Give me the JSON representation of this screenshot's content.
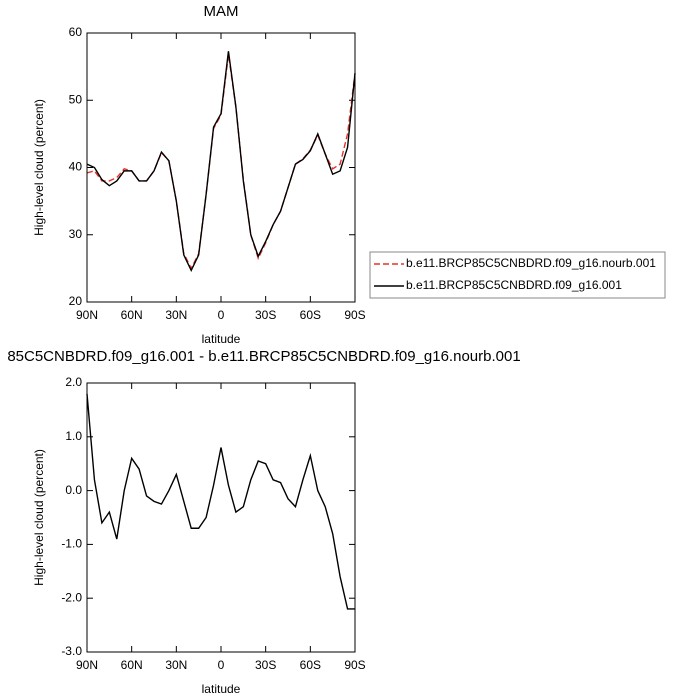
{
  "chart_data": [
    {
      "type": "line",
      "title": "MAM",
      "xlabel": "latitude",
      "ylabel": "High-level cloud (percent)",
      "x": [
        90,
        85,
        80,
        75,
        70,
        65,
        60,
        55,
        50,
        45,
        40,
        35,
        30,
        25,
        20,
        15,
        10,
        5,
        0,
        -5,
        -10,
        -15,
        -20,
        -25,
        -30,
        -35,
        -40,
        -45,
        -50,
        -55,
        -60,
        -65,
        -70,
        -75,
        -80,
        -85,
        -90
      ],
      "xlim": [
        90,
        -90
      ],
      "xticks": [
        {
          "value": 90,
          "label": "90N"
        },
        {
          "value": 60,
          "label": "60N"
        },
        {
          "value": 30,
          "label": "30N"
        },
        0,
        {
          "value": -30,
          "label": "30S"
        },
        {
          "value": -60,
          "label": "60S"
        },
        {
          "value": -90,
          "label": "90S"
        }
      ],
      "ylim": [
        20,
        60
      ],
      "yticks": [
        20,
        30,
        40,
        50,
        60
      ],
      "series": [
        {
          "name": "b.e11.BRCP85C5CNBDRD.f09_g16.nourb.001",
          "color": "#e8302a",
          "dash": true,
          "values": [
            39.2,
            39.5,
            38.0,
            38.0,
            38.5,
            39.8,
            39.5,
            38.0,
            38.0,
            39.5,
            42.2,
            41.0,
            35.0,
            27.2,
            25.0,
            27.2,
            36.0,
            45.8,
            47.8,
            56.8,
            49.0,
            38.2,
            30.0,
            26.5,
            28.8,
            31.5,
            33.5,
            37.0,
            40.5,
            41.3,
            42.6,
            44.8,
            42.0,
            39.8,
            40.5,
            45.0,
            54.0
          ]
        },
        {
          "name": "b.e11.BRCP85C5CNBDRD.f09_g16.001",
          "color": "#000000",
          "dash": false,
          "values": [
            40.5,
            40.0,
            38.2,
            37.3,
            38.0,
            39.5,
            39.5,
            38.0,
            38.0,
            39.5,
            42.3,
            41.0,
            35.0,
            27.0,
            24.7,
            27.0,
            36.0,
            46.0,
            48.0,
            57.3,
            49.0,
            38.0,
            30.0,
            26.8,
            29.0,
            31.5,
            33.5,
            37.0,
            40.5,
            41.2,
            42.5,
            45.0,
            42.0,
            39.0,
            39.5,
            43.0,
            54.0
          ]
        }
      ]
    },
    {
      "type": "line",
      "title": "85C5CNBDRD.f09_g16.001 - b.e11.BRCP85C5CNBDRD.f09_g16.nourb.001",
      "xlabel": "latitude",
      "ylabel": "High-level cloud (percent)",
      "x": [
        90,
        85,
        80,
        75,
        70,
        65,
        60,
        55,
        50,
        45,
        40,
        35,
        30,
        25,
        20,
        15,
        10,
        5,
        0,
        -5,
        -10,
        -15,
        -20,
        -25,
        -30,
        -35,
        -40,
        -45,
        -50,
        -55,
        -60,
        -65,
        -70,
        -75,
        -80,
        -85,
        -90
      ],
      "xlim": [
        90,
        -90
      ],
      "xticks": [
        {
          "value": 90,
          "label": "90N"
        },
        {
          "value": 60,
          "label": "60N"
        },
        {
          "value": 30,
          "label": "30N"
        },
        0,
        {
          "value": -30,
          "label": "30S"
        },
        {
          "value": -60,
          "label": "60S"
        },
        {
          "value": -90,
          "label": "90S"
        }
      ],
      "ylim": [
        -3,
        2
      ],
      "yticks": [
        {
          "value": -3,
          "label": "-3.0"
        },
        {
          "value": -2,
          "label": "-2.0"
        },
        {
          "value": -1,
          "label": "-1.0"
        },
        {
          "value": 0,
          "label": "0.0"
        },
        {
          "value": 1,
          "label": "1.0"
        },
        {
          "value": 2,
          "label": "2.0"
        }
      ],
      "series": [
        {
          "color": "#000000",
          "dash": false,
          "values": [
            1.8,
            0.2,
            -0.6,
            -0.4,
            -0.9,
            0.0,
            0.6,
            0.4,
            -0.1,
            -0.2,
            -0.25,
            0.0,
            0.3,
            -0.2,
            -0.7,
            -0.7,
            -0.5,
            0.1,
            0.8,
            0.1,
            -0.4,
            -0.3,
            0.2,
            0.55,
            0.5,
            0.2,
            0.15,
            -0.15,
            -0.3,
            0.2,
            0.65,
            0.0,
            -0.3,
            -0.8,
            -1.6,
            -2.2,
            -2.2
          ]
        }
      ]
    }
  ]
}
